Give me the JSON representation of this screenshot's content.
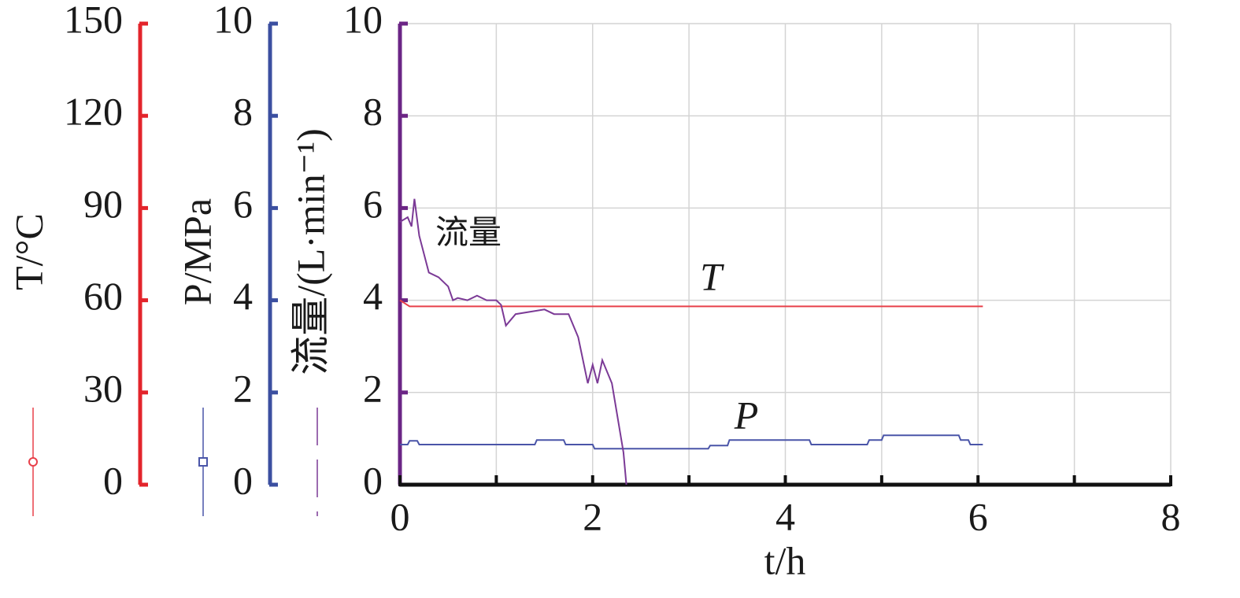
{
  "chart_data": {
    "type": "line",
    "x_label": "t/h",
    "y_label": "流量/(L·min⁻¹)",
    "y2_label": "P/MPa",
    "y3_label": "T/°C",
    "xlim": [
      0,
      8
    ],
    "xticks": [
      0,
      2,
      4,
      6,
      8
    ],
    "xminorticks": [
      1,
      3,
      5,
      7
    ],
    "ylim": [
      0,
      10
    ],
    "yticks": [
      0,
      2,
      4,
      6,
      8,
      10
    ],
    "y2lim": [
      0,
      10
    ],
    "y2ticks": [
      0,
      2,
      4,
      6,
      8,
      10
    ],
    "y3lim": [
      0,
      150
    ],
    "y3ticks": [
      0,
      30,
      60,
      90,
      120,
      150
    ],
    "grid": true,
    "axis_colors": {
      "y": "#6b2585",
      "y2": "#3b4fa0",
      "y3": "#e3242b"
    },
    "series": [
      {
        "name": "T",
        "axis": "y3",
        "color": "#e8404a",
        "x": [
          0,
          0.1,
          5.0,
          6.05
        ],
        "values": [
          60,
          58,
          58,
          58
        ]
      },
      {
        "name": "P",
        "axis": "y2",
        "color": "#4a55a8",
        "x": [
          0,
          0.08,
          0.1,
          0.18,
          0.2,
          1.4,
          1.42,
          1.7,
          1.72,
          2.0,
          2.02,
          3.2,
          3.22,
          3.4,
          3.42,
          4.25,
          4.27,
          4.85,
          4.87,
          5.0,
          5.02,
          5.8,
          5.82,
          5.9,
          5.92,
          6.05
        ],
        "values": [
          0.87,
          0.87,
          0.95,
          0.95,
          0.87,
          0.87,
          0.97,
          0.97,
          0.87,
          0.87,
          0.78,
          0.78,
          0.85,
          0.85,
          0.97,
          0.97,
          0.87,
          0.87,
          0.97,
          0.97,
          1.07,
          1.07,
          0.97,
          0.97,
          0.87,
          0.87
        ]
      },
      {
        "name": "流量",
        "axis": "y",
        "color": "#7b3a96",
        "x": [
          0,
          0.08,
          0.12,
          0.15,
          0.2,
          0.3,
          0.4,
          0.45,
          0.5,
          0.55,
          0.6,
          0.7,
          0.8,
          0.9,
          1.0,
          1.05,
          1.1,
          1.2,
          1.35,
          1.5,
          1.6,
          1.75,
          1.85,
          1.95,
          2.0,
          2.05,
          2.1,
          2.2,
          2.32,
          2.35
        ],
        "values": [
          5.7,
          5.8,
          5.6,
          6.2,
          5.4,
          4.6,
          4.5,
          4.4,
          4.3,
          4.0,
          4.05,
          4.0,
          4.1,
          4.0,
          4.0,
          3.9,
          3.45,
          3.7,
          3.75,
          3.8,
          3.7,
          3.7,
          3.2,
          2.2,
          2.6,
          2.2,
          2.7,
          2.2,
          0.7,
          0
        ]
      }
    ]
  }
}
